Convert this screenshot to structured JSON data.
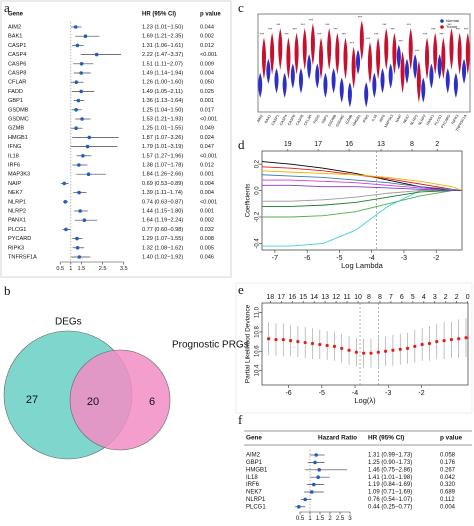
{
  "chart_data": [
    {
      "type": "forest",
      "panel_label": "a",
      "columns": [
        "Gene",
        "HR (95% CI)",
        "p value"
      ],
      "categories": [
        "AIM2",
        "BAK1",
        "CASP1",
        "CASP4",
        "CASP6",
        "CASP8",
        "CFLAR",
        "FADD",
        "GBP1",
        "GSDMB",
        "GSDMC",
        "GZMB",
        "HMGB1",
        "IFNG",
        "IL18",
        "IRF6",
        "MAP3K3",
        "NAIP",
        "NEK7",
        "NLRP1",
        "NLRP2",
        "PANX1",
        "PLCG1",
        "PYCARD",
        "RIPK3",
        "TNFRSF1A"
      ],
      "values": [
        1.23,
        1.69,
        1.31,
        2.22,
        1.51,
        1.49,
        1.26,
        1.49,
        1.36,
        1.25,
        1.53,
        1.25,
        1.87,
        1.79,
        1.57,
        1.38,
        1.84,
        0.69,
        1.39,
        0.74,
        1.44,
        1.64,
        0.77,
        1.29,
        1.32,
        1.4
      ],
      "lower": [
        1.01,
        1.21,
        1.06,
        1.47,
        1.11,
        1.14,
        1.0,
        1.05,
        1.13,
        1.04,
        1.21,
        1.01,
        1.07,
        1.01,
        1.27,
        1.07,
        1.26,
        0.53,
        1.11,
        0.63,
        1.15,
        1.19,
        0.6,
        1.07,
        1.08,
        1.02
      ],
      "upper": [
        1.5,
        2.35,
        1.61,
        3.37,
        2.07,
        1.94,
        1.6,
        2.11,
        1.64,
        1.5,
        1.93,
        1.55,
        3.26,
        3.19,
        1.96,
        1.78,
        2.66,
        0.89,
        1.74,
        0.87,
        1.8,
        2.24,
        0.98,
        1.55,
        1.62,
        1.92
      ],
      "value_labels": [
        "1.23 (1.01−1.50)",
        "1.69 (1.21−2.35)",
        "1.31 (1.06−1.61)",
        "2.22 (1.47−3.37)",
        "1.51 (1.11−2.07)",
        "1.49 (1.14−1.94)",
        "1.26 (1.00−1.60)",
        "1.49 (1.05−2.11)",
        "1.36 (1.13−1.64)",
        "1.25 (1.04−1.50)",
        "1.53 (1.21−1.93)",
        "1.25 (1.01−1.55)",
        "1.87 (1.07−3.26)",
        "1.79 (1.01−3.19)",
        "1.57 (1.27−1.96)",
        "1.38 (1.07−1.78)",
        "1.84 (1.26−2.66)",
        "0.69 (0.53−0.89)",
        "1.39 (1.11−1.74)",
        "0.74 (0.63−0.87)",
        "1.44 (1.15−1.80)",
        "1.64 (1.19−2.24)",
        "0.77 (0.60−0.98)",
        "1.29 (1.07−1.55)",
        "1.32 (1.08−1.62)",
        "1.40 (1.02−1.92)"
      ],
      "p_values": [
        "0.044",
        "0.002",
        "0.012",
        "<0.001",
        "0.009",
        "0.004",
        "0.050",
        "0.025",
        "0.001",
        "0.017",
        "<0.001",
        "0.049",
        "0.024",
        "0.047",
        "<0.001",
        "0.012",
        "0.001",
        "0.004",
        "0.004",
        "<0.001",
        "0.001",
        "0.002",
        "0.032",
        "0.008",
        "0.005",
        "0.046"
      ],
      "reference_line": 1,
      "xlim": [
        0.3,
        3.7
      ],
      "xticks": [
        0.5,
        1,
        1.5,
        2.5,
        3.5
      ],
      "color": "#1f5fbf"
    },
    {
      "type": "venn",
      "panel_label": "b",
      "sets": [
        "DEGs",
        "Prognostic PRGs"
      ],
      "values": [
        27,
        20,
        6
      ],
      "colors": [
        "#7fd6cc",
        "#f28dc4"
      ]
    },
    {
      "type": "violin",
      "panel_label": "c",
      "categories": [
        "AIM2",
        "BAK1",
        "CASP1",
        "CASP4",
        "CASP6",
        "CASP8",
        "CFLAR",
        "FADD",
        "GBP1",
        "GSDMB",
        "GSDMC",
        "GZMB",
        "HMGB1",
        "IFNG",
        "IL18",
        "IRF6",
        "MAP3K3",
        "NAIP",
        "NEK7",
        "NLRP1",
        "NLRP2",
        "PANX1",
        "PLCG1",
        "PYCARD",
        "RIPK3",
        "TNFRSF1A"
      ],
      "series": [
        {
          "name": "Normal",
          "color": "#2b2fc8",
          "values": [
            3,
            4.5,
            3.5,
            3,
            4,
            3.5,
            5,
            4,
            3,
            3.5,
            2.5,
            2,
            5.5,
            2,
            3,
            3.5,
            4,
            6,
            4.5,
            5,
            2.5,
            4,
            5,
            3.5,
            3,
            4.5
          ],
          "low": [
            1.5,
            3,
            2,
            1.5,
            2.5,
            2,
            3.5,
            2.5,
            1.5,
            2,
            1,
            0.5,
            4,
            0.5,
            1.5,
            2,
            2.5,
            4.5,
            3,
            3.5,
            1,
            2.5,
            3.5,
            2,
            1.5,
            3
          ],
          "high": [
            4.2,
            5.7,
            4.7,
            4.2,
            5.2,
            4.7,
            6.2,
            5.2,
            4.2,
            4.7,
            3.7,
            3.2,
            6.7,
            3.2,
            4.2,
            4.7,
            5.2,
            7.2,
            5.7,
            6.2,
            3.7,
            5.2,
            6.2,
            4.7,
            4.2,
            5.7
          ]
        },
        {
          "name": "Tumor",
          "color": "#c8102e",
          "values": [
            6,
            6.5,
            7,
            6,
            6.5,
            7,
            7.5,
            6,
            7,
            6.5,
            6,
            5,
            8,
            5.5,
            6,
            7,
            6.5,
            4.5,
            7,
            3.5,
            6,
            6.5,
            6,
            7,
            6.5,
            6.5
          ],
          "low": [
            3.5,
            4,
            4.5,
            3.5,
            4,
            4.5,
            5,
            3.5,
            4.5,
            4,
            3.5,
            2.5,
            5.5,
            3,
            3.5,
            4.5,
            4,
            2,
            4.5,
            1,
            3.5,
            4,
            3.5,
            4.5,
            4,
            4
          ],
          "high": [
            8,
            8.5,
            9,
            8,
            8.5,
            9,
            9.5,
            8,
            9,
            8.5,
            8,
            7,
            9.8,
            7.5,
            8,
            9,
            8.5,
            6.5,
            9,
            5.5,
            8,
            8.5,
            8,
            9,
            8.5,
            8.5
          ]
        }
      ],
      "significance": [
        "***",
        "***",
        "***",
        "***",
        "***",
        "***",
        "***",
        "***",
        "***",
        "***",
        "***",
        "***",
        "***",
        "***",
        "***",
        "***",
        "***",
        "***",
        "***",
        "***",
        "***",
        "***",
        "***",
        "***",
        "***",
        "***"
      ],
      "ylim": [
        0,
        10.5
      ]
    },
    {
      "type": "line",
      "panel_label": "d",
      "x": [
        -7.4,
        -6.5,
        -5.5,
        -4.5,
        -3.5,
        -2.5,
        -1.5,
        -1.2
      ],
      "series": [
        {
          "color": "#000000",
          "values": [
            0.22,
            0.2,
            0.17,
            0.13,
            0.08,
            0.03,
            0,
            0
          ]
        },
        {
          "color": "#e41a1c",
          "values": [
            0.18,
            0.17,
            0.15,
            0.12,
            0.09,
            0.05,
            0.01,
            0
          ]
        },
        {
          "color": "#4daf4a",
          "values": [
            -0.2,
            -0.2,
            -0.19,
            -0.16,
            -0.1,
            -0.04,
            0,
            0
          ]
        },
        {
          "color": "#377eb8",
          "values": [
            0.12,
            0.11,
            0.1,
            0.08,
            0.06,
            0.03,
            0.01,
            0
          ]
        },
        {
          "color": "#41d0d6",
          "values": [
            -0.42,
            -0.42,
            -0.4,
            -0.3,
            -0.12,
            0,
            0,
            0
          ]
        },
        {
          "color": "#d63bd6",
          "values": [
            0.08,
            0.08,
            0.07,
            0.06,
            0.04,
            0.02,
            0,
            0
          ]
        },
        {
          "color": "#f0b400",
          "values": [
            0.15,
            0.14,
            0.13,
            0.12,
            0.1,
            0.07,
            0.03,
            0
          ]
        },
        {
          "color": "#999999",
          "values": [
            -0.08,
            -0.08,
            -0.07,
            -0.05,
            -0.02,
            0,
            0,
            0
          ]
        },
        {
          "color": "#1b7a2a",
          "values": [
            -0.12,
            -0.12,
            -0.11,
            -0.09,
            -0.05,
            -0.01,
            0,
            0
          ]
        },
        {
          "color": "#7b3fbf",
          "values": [
            0.04,
            0.04,
            0.03,
            0.03,
            0.02,
            0.01,
            0,
            0
          ]
        }
      ],
      "xlim": [
        -7.4,
        -1.2
      ],
      "ylim": [
        -0.45,
        0.3
      ],
      "xticks": [
        -7,
        -6,
        -5,
        -4,
        -3,
        -2
      ],
      "yticks": [
        -0.4,
        -0.2,
        {
          "value": 0,
          "label": "0.0"
        },
        0.2
      ],
      "top_ticks": [
        {
          "value": -6.6,
          "label": "19"
        },
        {
          "value": -5.66,
          "label": "17"
        },
        {
          "value": -4.7,
          "label": "16"
        },
        {
          "value": -3.71,
          "label": "13"
        },
        {
          "value": -2.75,
          "label": "8"
        },
        {
          "value": -1.97,
          "label": "2"
        }
      ],
      "reference_lines": [
        -3.85
      ],
      "x_label": "Log Lambda",
      "y_label": "Coefficients"
    },
    {
      "type": "errorbar",
      "panel_label": "e",
      "x": [
        -6.6,
        -6.38,
        -6.16,
        -5.94,
        -5.72,
        -5.5,
        -5.28,
        -5.06,
        -4.84,
        -4.62,
        -4.4,
        -4.18,
        -3.96,
        -3.74,
        -3.52,
        -3.3,
        -3.08,
        -2.86,
        -2.64,
        -2.42,
        -2.2,
        -1.98,
        -1.76,
        -1.54,
        -1.32,
        -1.1,
        -0.88,
        -0.66
      ],
      "values": [
        10.73,
        10.72,
        10.72,
        10.71,
        10.7,
        10.69,
        10.68,
        10.67,
        10.66,
        10.65,
        10.63,
        10.61,
        10.59,
        10.58,
        10.58,
        10.59,
        10.6,
        10.61,
        10.62,
        10.63,
        10.65,
        10.67,
        10.68,
        10.7,
        10.71,
        10.72,
        10.73,
        10.74
      ],
      "errors": [
        0.17,
        0.17,
        0.17,
        0.16,
        0.16,
        0.16,
        0.16,
        0.15,
        0.15,
        0.15,
        0.15,
        0.15,
        0.15,
        0.15,
        0.15,
        0.15,
        0.15,
        0.16,
        0.16,
        0.16,
        0.17,
        0.17,
        0.18,
        0.18,
        0.19,
        0.19,
        0.2,
        0.2
      ],
      "color": "#e0201b",
      "xlim": [
        -6.8,
        -0.6
      ],
      "ylim": [
        10.25,
        11.1
      ],
      "xticks": [
        -6,
        -5,
        -4,
        -3,
        -2
      ],
      "yticks": [
        10.4,
        10.6,
        10.8,
        {
          "value": 11,
          "label": "11.0"
        }
      ],
      "top_ticks": [
        {
          "value": -6.55,
          "label": "18"
        },
        {
          "value": -6.22,
          "label": "17"
        },
        {
          "value": -5.89,
          "label": "16"
        },
        {
          "value": -5.56,
          "label": "15"
        },
        {
          "value": -5.23,
          "label": "14"
        },
        {
          "value": -4.9,
          "label": "13"
        },
        {
          "value": -4.57,
          "label": "12"
        },
        {
          "value": -4.24,
          "label": "11"
        },
        {
          "value": -3.91,
          "label": "10"
        },
        {
          "value": -3.58,
          "label": "8"
        },
        {
          "value": -3.25,
          "label": "8"
        },
        {
          "value": -2.92,
          "label": "7"
        },
        {
          "value": -2.59,
          "label": "6"
        },
        {
          "value": -2.26,
          "label": "5"
        },
        {
          "value": -1.93,
          "label": "4"
        },
        {
          "value": -1.6,
          "label": "3"
        },
        {
          "value": -1.27,
          "label": "2"
        },
        {
          "value": -0.94,
          "label": "2"
        },
        {
          "value": -0.61,
          "label": "0"
        }
      ],
      "reference_lines": [
        -3.85,
        -3.3
      ],
      "x_label": "Log(λ)",
      "y_label": "Partial Likelihood Deviance"
    },
    {
      "type": "forest",
      "panel_label": "f",
      "columns": [
        "Gene",
        "Hazard Ratio",
        "HR (95% CI)",
        "p value"
      ],
      "categories": [
        "AIM2",
        "GBP1",
        "HMGB1",
        "IL18",
        "IRF6",
        "NEK7",
        "NLRP1",
        "PLCG1"
      ],
      "values": [
        1.31,
        1.25,
        1.46,
        1.41,
        1.19,
        1.09,
        0.76,
        0.44
      ],
      "lower": [
        0.99,
        0.9,
        0.75,
        1.01,
        0.84,
        0.71,
        0.54,
        0.25
      ],
      "upper": [
        1.73,
        1.73,
        2.86,
        1.98,
        1.69,
        1.69,
        1.07,
        0.77
      ],
      "value_labels": [
        "1.31 (0.99−1.73)",
        "1.25 (0.90−1.73)",
        "1.46 (0.75−2.86)",
        "1.41 (1.01−1.98)",
        "1.19 (0.84−1.69)",
        "1.09 (0.71−1.69)",
        "0.76 (0.54−1.07)",
        "0.44 (0.25−0.77)"
      ],
      "p_values": [
        "0.058",
        "0.176",
        "0.267",
        "0.042",
        "0.320",
        "0.689",
        "0.112",
        "0.004"
      ],
      "reference_line": 1,
      "xlim": [
        0.3,
        3.1
      ],
      "xticks": [
        0.5,
        1,
        1.5,
        2,
        2.5,
        3
      ],
      "color": "#1f5fbf"
    }
  ]
}
